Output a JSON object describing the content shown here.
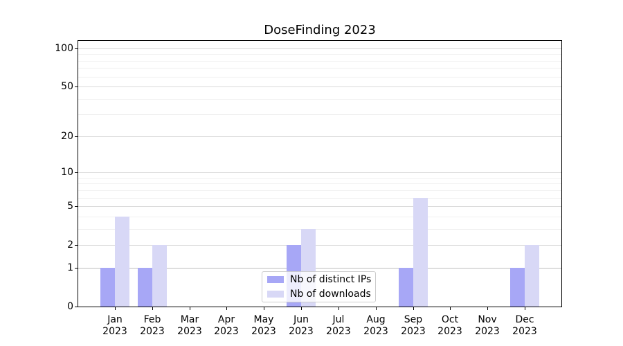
{
  "figure": {
    "background": "#ffffff"
  },
  "chart_data": {
    "type": "bar",
    "title": "DoseFinding 2023",
    "categories": [
      "Jan 2023",
      "Feb 2023",
      "Mar 2023",
      "Apr 2023",
      "May 2023",
      "Jun 2023",
      "Jul 2023",
      "Aug 2023",
      "Sep 2023",
      "Oct 2023",
      "Nov 2023",
      "Dec 2023"
    ],
    "series": [
      {
        "name": "Nb of distinct IPs",
        "color": "#a7a7f6",
        "values": [
          1,
          1,
          0,
          0,
          0,
          2,
          0,
          0,
          1,
          0,
          0,
          1
        ]
      },
      {
        "name": "Nb of downloads",
        "color": "#d8d8f6",
        "values": [
          4,
          2,
          0,
          0,
          0,
          3,
          0,
          0,
          6,
          0,
          0,
          2
        ]
      }
    ],
    "xlabel": "",
    "ylabel": "",
    "y_scale": "log10(value+1)",
    "ylim": [
      0,
      113
    ],
    "y_major_ticks": [
      0,
      1,
      2,
      5,
      10,
      20,
      50,
      100
    ],
    "y_minor_gridlines": [
      3,
      4,
      6,
      7,
      8,
      9,
      30,
      40,
      60,
      70,
      80,
      90
    ],
    "grid": "horizontal major and minor gridlines",
    "legend": {
      "position": "lower center",
      "entries": [
        "Nb of distinct IPs",
        "Nb of downloads"
      ]
    },
    "colors": {
      "major_grid": "#d9d9d9",
      "minor_grid": "#f0f0f0",
      "unit_grid": "#bdbdbd",
      "spine": "#000000",
      "text": "#000000"
    }
  }
}
